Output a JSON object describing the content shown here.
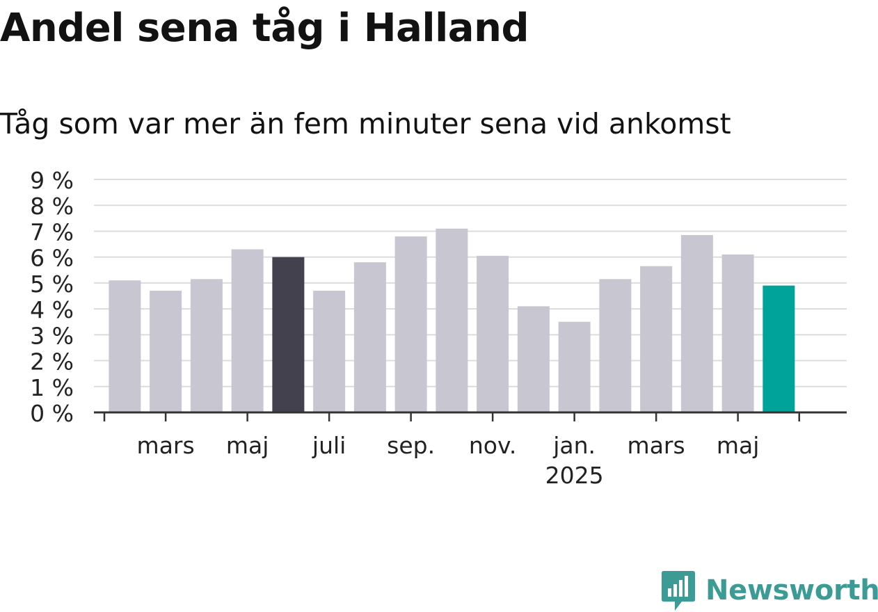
{
  "title": "Andel sena tåg i Halland",
  "subtitle": "Tåg som var mer än fem minuter sena vid ankomst",
  "brand": {
    "name": "Newsworthy",
    "icon": "newsworthy-logo-icon",
    "color": "#3d9b96"
  },
  "chart_data": {
    "type": "bar",
    "title": "Andel sena tåg i Halland",
    "subtitle": "Tåg som var mer än fem minuter sena vid ankomst",
    "categories": [
      "2024-02",
      "2024-03",
      "2024-04",
      "2024-05",
      "2024-06",
      "2024-07",
      "2024-08",
      "2024-09",
      "2024-10",
      "2024-11",
      "2024-12",
      "2025-01",
      "2025-02",
      "2025-03",
      "2025-04",
      "2025-05",
      "2025-06"
    ],
    "values": [
      5.1,
      4.7,
      5.15,
      6.3,
      6.0,
      4.7,
      5.8,
      6.8,
      7.1,
      6.05,
      4.1,
      3.5,
      5.15,
      5.65,
      6.85,
      6.1,
      4.9
    ],
    "highlight": {
      "2024-06": "#43414e",
      "2025-06": "#00a39a"
    },
    "bar_color": "#c8c6d1",
    "ylim": [
      0,
      9
    ],
    "yticks": [
      0,
      1,
      2,
      3,
      4,
      5,
      6,
      7,
      8,
      9
    ],
    "ytick_labels": [
      "0 %",
      "1 %",
      "2 %",
      "3 %",
      "4 %",
      "5 %",
      "6 %",
      "7 %",
      "8 %",
      "9 %"
    ],
    "xtick_labels": [
      {
        "at": "2024-03",
        "label": "mars"
      },
      {
        "at": "2024-05",
        "label": "maj"
      },
      {
        "at": "2024-07",
        "label": "juli"
      },
      {
        "at": "2024-09",
        "label": "sep."
      },
      {
        "at": "2024-11",
        "label": "nov."
      },
      {
        "at": "2025-01",
        "label": "jan.",
        "sublabel": "2025"
      },
      {
        "at": "2025-03",
        "label": "mars"
      },
      {
        "at": "2025-05",
        "label": "maj"
      }
    ],
    "xlabel": "",
    "ylabel": "",
    "grid": true,
    "legend": "none"
  }
}
